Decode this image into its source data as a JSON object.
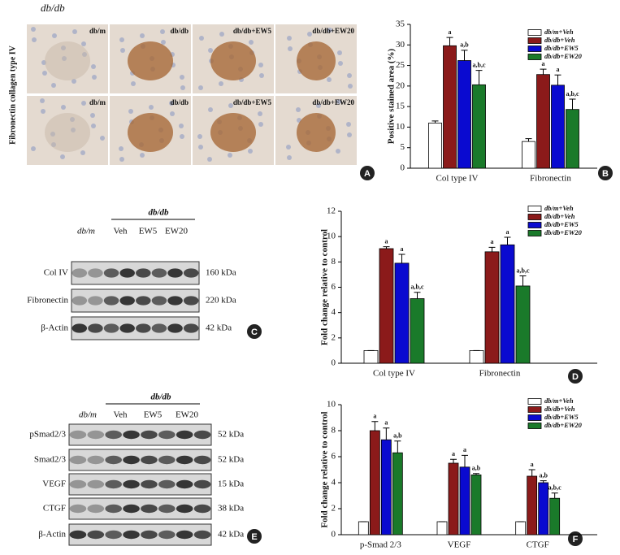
{
  "figure_title": "db/db",
  "panel_letters": [
    "A",
    "B",
    "C",
    "D",
    "E",
    "F"
  ],
  "panel_a": {
    "side_label": "Fibronectin collagen type IV",
    "images": [
      [
        "db/m",
        "db/db",
        "db/db+EW5",
        "db/db+EW20"
      ],
      [
        "db/m",
        "db/db",
        "db/db+EW5",
        "db/db+EW20"
      ]
    ]
  },
  "panel_c": {
    "group_label": "db/db",
    "lanes": [
      "db/m",
      "Veh",
      "EW5",
      "EW20"
    ],
    "rows": [
      {
        "label": "Col IV",
        "size": "160 kDa"
      },
      {
        "label": "Fibronectin",
        "size": "220 kDa"
      },
      {
        "label": "β-Actin",
        "size": "42 kDa"
      }
    ]
  },
  "panel_e": {
    "group_label": "db/db",
    "lanes": [
      "db/m",
      "Veh",
      "EW5",
      "EW20"
    ],
    "rows": [
      {
        "label": "pSmad2/3",
        "size": "52 kDa"
      },
      {
        "label": "Smad2/3",
        "size": "52 kDa"
      },
      {
        "label": "VEGF",
        "size": "15 kDa"
      },
      {
        "label": "CTGF",
        "size": "38 kDa"
      },
      {
        "label": "β-Actin",
        "size": "42 kDa"
      }
    ]
  },
  "chart_data": [
    {
      "type": "bar",
      "ylabel": "Positive stained area (%)",
      "categories": [
        "Col type IV",
        "Fibronectin"
      ],
      "ylim": [
        0,
        35
      ],
      "yticks": [
        0,
        5,
        10,
        15,
        20,
        25,
        30,
        35
      ],
      "legend": "top-right",
      "series": [
        {
          "name": "db/m+Veh",
          "color": "#ffffff",
          "values": [
            11,
            6.5
          ],
          "errors": [
            0.5,
            0.7
          ]
        },
        {
          "name": "db/db+Veh",
          "color": "#8b1a1a",
          "values": [
            29.8,
            22.8
          ],
          "errors": [
            2,
            1.3
          ],
          "annotations": [
            "a",
            "a"
          ]
        },
        {
          "name": "db/db+EW5",
          "color": "#0a0ad0",
          "values": [
            26.2,
            20.2
          ],
          "errors": [
            2.5,
            2.5
          ],
          "annotations": [
            "a,b",
            "a"
          ]
        },
        {
          "name": "db/db+EW20",
          "color": "#1a7a2a",
          "values": [
            20.3,
            14.3
          ],
          "errors": [
            3.5,
            2.5
          ],
          "annotations": [
            "a,b,c",
            "a,b,c"
          ]
        }
      ]
    },
    {
      "type": "bar",
      "ylabel": "Fold change relative to control",
      "categories": [
        "Col type IV",
        "Fibronectin"
      ],
      "ylim": [
        0,
        12
      ],
      "yticks": [
        0,
        2,
        4,
        6,
        8,
        10,
        12
      ],
      "legend": "top-right",
      "series": [
        {
          "name": "db/m+Veh",
          "color": "#ffffff",
          "values": [
            1,
            1
          ],
          "errors": [
            0,
            0
          ]
        },
        {
          "name": "db/db+Veh",
          "color": "#8b1a1a",
          "values": [
            9.05,
            8.8
          ],
          "errors": [
            0.15,
            0.35
          ],
          "annotations": [
            "a",
            "a"
          ]
        },
        {
          "name": "db/db+EW5",
          "color": "#0a0ad0",
          "values": [
            7.9,
            9.35
          ],
          "errors": [
            0.7,
            0.6
          ],
          "annotations": [
            "a",
            "a"
          ]
        },
        {
          "name": "db/db+EW20",
          "color": "#1a7a2a",
          "values": [
            5.1,
            6.1
          ],
          "errors": [
            0.5,
            0.8
          ],
          "annotations": [
            "a,b,c",
            "a,b,c"
          ]
        }
      ]
    },
    {
      "type": "bar",
      "ylabel": "Fold change relative to control",
      "categories": [
        "p-Smad 2/3",
        "VEGF",
        "CTGF"
      ],
      "ylim": [
        0,
        10
      ],
      "yticks": [
        0,
        2,
        4,
        6,
        8,
        10
      ],
      "legend": "top-right",
      "series": [
        {
          "name": "db/m+Veh",
          "color": "#ffffff",
          "values": [
            1,
            1,
            1
          ],
          "errors": [
            0,
            0,
            0
          ]
        },
        {
          "name": "db/db+Veh",
          "color": "#8b1a1a",
          "values": [
            8.0,
            5.5,
            4.5
          ],
          "errors": [
            0.7,
            0.3,
            0.5
          ],
          "annotations": [
            "a",
            "a",
            "a"
          ]
        },
        {
          "name": "db/db+EW5",
          "color": "#0a0ad0",
          "values": [
            7.3,
            5.2,
            4.0
          ],
          "errors": [
            0.9,
            0.9,
            0.15
          ],
          "annotations": [
            "a",
            "a",
            "a,b"
          ]
        },
        {
          "name": "db/db+EW20",
          "color": "#1a7a2a",
          "values": [
            6.3,
            4.6,
            2.8
          ],
          "errors": [
            0.9,
            0.1,
            0.4
          ],
          "annotations": [
            "a,b",
            "a,b",
            "a,b,c"
          ]
        }
      ]
    }
  ]
}
